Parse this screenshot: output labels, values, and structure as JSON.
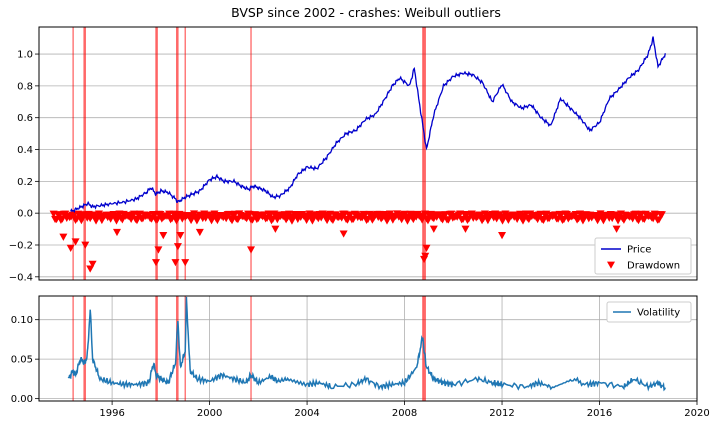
{
  "chart_data": [
    {
      "type": "line",
      "title": "BVSP since 2002 - crashes: Weibull outliers",
      "xlabel": "",
      "ylabel": "",
      "xlim": [
        1993.0,
        2020.0
      ],
      "ylim": [
        -0.42,
        1.17
      ],
      "yticks": [
        -0.4,
        -0.2,
        0.0,
        0.2,
        0.4,
        0.6,
        0.8,
        1.0
      ],
      "ytick_labels": [
        "−0.4",
        "−0.2",
        "0.0",
        "0.2",
        "0.4",
        "0.6",
        "0.8",
        "1.0"
      ],
      "grid": "horizontal",
      "legend": "bottom-right",
      "series": [
        {
          "name": "Price",
          "kind": "line",
          "color": "#0000cc",
          "x": [
            1994.3,
            1994.6,
            1995.0,
            1995.2,
            1995.6,
            1996.0,
            1996.5,
            1997.0,
            1997.4,
            1997.6,
            1997.8,
            1998.0,
            1998.3,
            1998.6,
            1998.7,
            1999.0,
            1999.3,
            1999.6,
            2000.0,
            2000.3,
            2000.6,
            2001.0,
            2001.3,
            2001.6,
            2001.8,
            2002.0,
            2002.3,
            2002.6,
            2002.9,
            2003.3,
            2003.6,
            2004.0,
            2004.4,
            2004.8,
            2005.2,
            2005.6,
            2006.0,
            2006.4,
            2006.8,
            2007.2,
            2007.5,
            2007.8,
            2008.2,
            2008.4,
            2008.6,
            2008.8,
            2008.9,
            2009.2,
            2009.6,
            2010.0,
            2010.4,
            2010.8,
            2011.2,
            2011.6,
            2012.0,
            2012.4,
            2012.8,
            2013.2,
            2013.6,
            2014.0,
            2014.4,
            2014.8,
            2015.2,
            2015.6,
            2016.0,
            2016.4,
            2016.8,
            2017.2,
            2017.6,
            2018.0,
            2018.2,
            2018.4,
            2018.7
          ],
          "values": [
            0.01,
            0.03,
            0.06,
            0.04,
            0.05,
            0.06,
            0.07,
            0.09,
            0.13,
            0.16,
            0.12,
            0.14,
            0.13,
            0.09,
            0.07,
            0.1,
            0.12,
            0.14,
            0.21,
            0.23,
            0.2,
            0.2,
            0.17,
            0.15,
            0.17,
            0.16,
            0.14,
            0.1,
            0.11,
            0.16,
            0.24,
            0.29,
            0.28,
            0.35,
            0.44,
            0.5,
            0.52,
            0.59,
            0.62,
            0.72,
            0.8,
            0.85,
            0.8,
            0.91,
            0.7,
            0.5,
            0.4,
            0.62,
            0.8,
            0.86,
            0.88,
            0.87,
            0.82,
            0.7,
            0.81,
            0.7,
            0.66,
            0.68,
            0.6,
            0.55,
            0.72,
            0.66,
            0.6,
            0.52,
            0.57,
            0.72,
            0.78,
            0.85,
            0.9,
            1.0,
            1.1,
            0.92,
            1.0
          ]
        },
        {
          "name": "Drawdown",
          "kind": "marker",
          "color": "#ff0000",
          "x": [
            1994.9,
            1995.1,
            1995.2,
            1994.3,
            1994.5,
            1994.0,
            1997.8,
            1997.9,
            1998.1,
            1998.6,
            1998.7,
            1998.8,
            1999.0,
            2001.7,
            2008.8,
            2008.85,
            2008.9,
            2005.5,
            2009.2,
            2012.0,
            2010.5,
            1996.2,
            1999.6,
            2002.7,
            2016.7
          ],
          "values": [
            -0.2,
            -0.35,
            -0.32,
            -0.22,
            -0.18,
            -0.15,
            -0.31,
            -0.23,
            -0.14,
            -0.31,
            -0.21,
            -0.14,
            -0.31,
            -0.23,
            -0.29,
            -0.27,
            -0.22,
            -0.13,
            -0.1,
            -0.14,
            -0.1,
            -0.12,
            -0.12,
            -0.1,
            -0.1
          ]
        }
      ],
      "crash_lines": [
        1994.4,
        1994.85,
        1994.9,
        1997.8,
        1997.85,
        1998.65,
        1998.7,
        1999.0,
        2001.7,
        2008.75,
        2008.8,
        2008.85
      ]
    },
    {
      "type": "line",
      "xlim": [
        1993.0,
        2020.0
      ],
      "ylim": [
        -0.003,
        0.13
      ],
      "yticks": [
        0.0,
        0.05,
        0.1
      ],
      "ytick_labels": [
        "0.00",
        "0.05",
        "0.10"
      ],
      "xticks": [
        1996,
        2000,
        2004,
        2008,
        2012,
        2016,
        2020
      ],
      "xtick_labels": [
        "1996",
        "2000",
        "2004",
        "2008",
        "2012",
        "2016",
        "2020"
      ],
      "grid": "both",
      "legend": "top-right",
      "series": [
        {
          "name": "Volatility",
          "color": "#1f77b4",
          "x": [
            1994.2,
            1994.4,
            1994.5,
            1994.7,
            1994.9,
            1995.0,
            1995.1,
            1995.2,
            1995.5,
            1996.0,
            1996.5,
            1997.0,
            1997.5,
            1997.7,
            1997.8,
            1998.0,
            1998.3,
            1998.6,
            1998.7,
            1998.8,
            1999.0,
            1999.05,
            1999.2,
            1999.5,
            2000.0,
            2000.5,
            2001.0,
            2001.5,
            2001.7,
            2002.0,
            2002.5,
            2002.8,
            2003.2,
            2004.0,
            2004.5,
            2005.0,
            2006.0,
            2006.4,
            2007.0,
            2007.5,
            2008.0,
            2008.5,
            2008.75,
            2008.8,
            2008.9,
            2009.2,
            2009.6,
            2010.0,
            2011.0,
            2011.6,
            2012.0,
            2013.0,
            2013.5,
            2014.0,
            2014.8,
            2015.5,
            2016.0,
            2017.0,
            2017.4,
            2018.0,
            2018.4,
            2018.7
          ],
          "values": [
            0.025,
            0.035,
            0.03,
            0.05,
            0.045,
            0.06,
            0.115,
            0.05,
            0.025,
            0.02,
            0.018,
            0.018,
            0.02,
            0.045,
            0.03,
            0.025,
            0.02,
            0.045,
            0.1,
            0.04,
            0.06,
            0.125,
            0.035,
            0.025,
            0.022,
            0.03,
            0.025,
            0.02,
            0.03,
            0.02,
            0.028,
            0.022,
            0.025,
            0.018,
            0.02,
            0.015,
            0.018,
            0.025,
            0.015,
            0.018,
            0.02,
            0.04,
            0.08,
            0.06,
            0.04,
            0.025,
            0.02,
            0.018,
            0.025,
            0.02,
            0.018,
            0.015,
            0.02,
            0.015,
            0.025,
            0.018,
            0.02,
            0.015,
            0.025,
            0.015,
            0.02,
            0.013
          ]
        }
      ],
      "crash_lines": [
        1994.4,
        1994.85,
        1994.9,
        1997.8,
        1997.85,
        1998.65,
        1998.7,
        1999.0,
        2001.7,
        2008.75,
        2008.8,
        2008.85
      ]
    }
  ]
}
